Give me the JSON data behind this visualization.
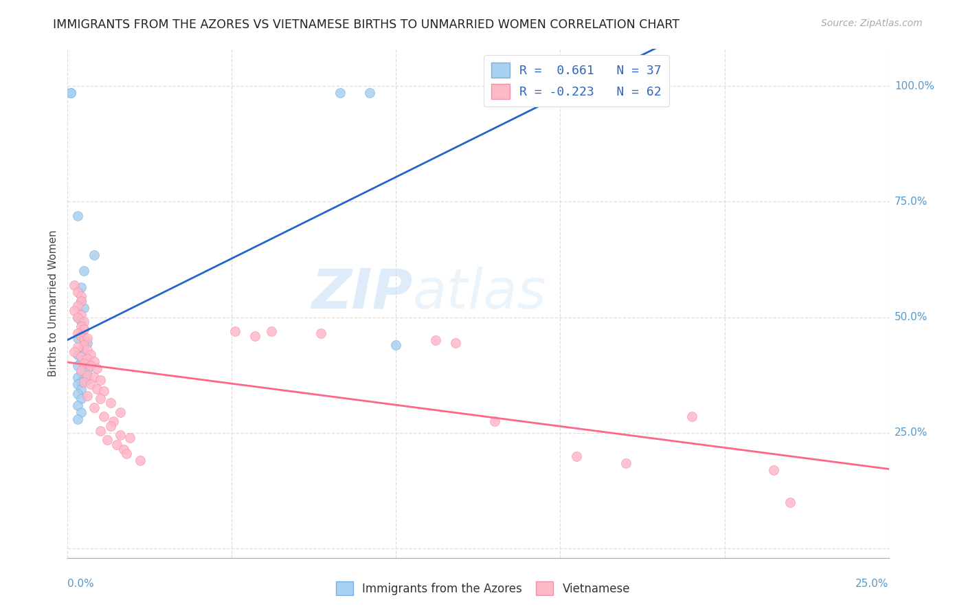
{
  "title": "IMMIGRANTS FROM THE AZORES VS VIETNAMESE BIRTHS TO UNMARRIED WOMEN CORRELATION CHART",
  "source": "Source: ZipAtlas.com",
  "ylabel": "Births to Unmarried Women",
  "yticks": [
    0.0,
    0.25,
    0.5,
    0.75,
    1.0
  ],
  "ytick_labels": [
    "",
    "25.0%",
    "50.0%",
    "75.0%",
    "100.0%"
  ],
  "xrange": [
    0.0,
    0.25
  ],
  "yrange": [
    -0.02,
    1.08
  ],
  "watermark_zip": "ZIP",
  "watermark_atlas": "atlas",
  "azores_color": "#a8d0f0",
  "azores_edge_color": "#7ab0e0",
  "vietnamese_color": "#ffb8c8",
  "vietnamese_edge_color": "#f090a8",
  "azores_line_color": "#2266cc",
  "vietnamese_line_color": "#ff6688",
  "azores_points": [
    [
      0.001,
      0.985
    ],
    [
      0.001,
      0.985
    ],
    [
      0.003,
      0.72
    ],
    [
      0.008,
      0.635
    ],
    [
      0.005,
      0.6
    ],
    [
      0.004,
      0.565
    ],
    [
      0.004,
      0.535
    ],
    [
      0.005,
      0.52
    ],
    [
      0.003,
      0.5
    ],
    [
      0.004,
      0.49
    ],
    [
      0.005,
      0.475
    ],
    [
      0.004,
      0.46
    ],
    [
      0.003,
      0.455
    ],
    [
      0.006,
      0.445
    ],
    [
      0.005,
      0.435
    ],
    [
      0.004,
      0.425
    ],
    [
      0.003,
      0.42
    ],
    [
      0.006,
      0.41
    ],
    [
      0.004,
      0.405
    ],
    [
      0.005,
      0.4
    ],
    [
      0.003,
      0.395
    ],
    [
      0.006,
      0.385
    ],
    [
      0.004,
      0.38
    ],
    [
      0.005,
      0.375
    ],
    [
      0.003,
      0.37
    ],
    [
      0.006,
      0.365
    ],
    [
      0.004,
      0.36
    ],
    [
      0.003,
      0.355
    ],
    [
      0.004,
      0.345
    ],
    [
      0.003,
      0.335
    ],
    [
      0.004,
      0.325
    ],
    [
      0.003,
      0.31
    ],
    [
      0.004,
      0.295
    ],
    [
      0.003,
      0.28
    ],
    [
      0.083,
      0.985
    ],
    [
      0.092,
      0.985
    ],
    [
      0.1,
      0.44
    ]
  ],
  "vietnamese_points": [
    [
      0.002,
      0.57
    ],
    [
      0.003,
      0.555
    ],
    [
      0.004,
      0.545
    ],
    [
      0.004,
      0.535
    ],
    [
      0.003,
      0.525
    ],
    [
      0.002,
      0.515
    ],
    [
      0.004,
      0.505
    ],
    [
      0.003,
      0.5
    ],
    [
      0.005,
      0.49
    ],
    [
      0.004,
      0.48
    ],
    [
      0.005,
      0.475
    ],
    [
      0.003,
      0.465
    ],
    [
      0.004,
      0.46
    ],
    [
      0.005,
      0.455
    ],
    [
      0.006,
      0.455
    ],
    [
      0.005,
      0.44
    ],
    [
      0.003,
      0.435
    ],
    [
      0.006,
      0.43
    ],
    [
      0.002,
      0.425
    ],
    [
      0.007,
      0.42
    ],
    [
      0.004,
      0.415
    ],
    [
      0.006,
      0.41
    ],
    [
      0.008,
      0.405
    ],
    [
      0.005,
      0.4
    ],
    [
      0.007,
      0.395
    ],
    [
      0.009,
      0.39
    ],
    [
      0.004,
      0.385
    ],
    [
      0.006,
      0.375
    ],
    [
      0.008,
      0.37
    ],
    [
      0.01,
      0.365
    ],
    [
      0.005,
      0.36
    ],
    [
      0.007,
      0.355
    ],
    [
      0.009,
      0.345
    ],
    [
      0.011,
      0.34
    ],
    [
      0.006,
      0.33
    ],
    [
      0.01,
      0.325
    ],
    [
      0.013,
      0.315
    ],
    [
      0.008,
      0.305
    ],
    [
      0.016,
      0.295
    ],
    [
      0.011,
      0.285
    ],
    [
      0.014,
      0.275
    ],
    [
      0.013,
      0.265
    ],
    [
      0.01,
      0.255
    ],
    [
      0.016,
      0.245
    ],
    [
      0.019,
      0.24
    ],
    [
      0.012,
      0.235
    ],
    [
      0.015,
      0.225
    ],
    [
      0.017,
      0.215
    ],
    [
      0.018,
      0.205
    ],
    [
      0.022,
      0.19
    ],
    [
      0.051,
      0.47
    ],
    [
      0.057,
      0.46
    ],
    [
      0.062,
      0.47
    ],
    [
      0.077,
      0.465
    ],
    [
      0.112,
      0.45
    ],
    [
      0.118,
      0.445
    ],
    [
      0.13,
      0.275
    ],
    [
      0.155,
      0.2
    ],
    [
      0.17,
      0.185
    ],
    [
      0.19,
      0.285
    ],
    [
      0.215,
      0.17
    ],
    [
      0.22,
      0.1
    ]
  ]
}
